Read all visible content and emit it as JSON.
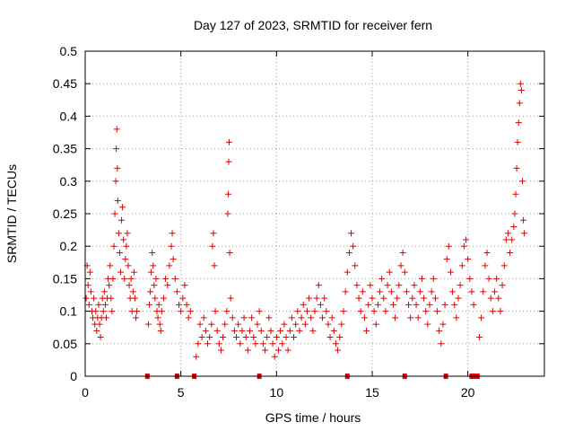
{
  "chart_data": {
    "type": "scatter",
    "title": "Day 127 of 2023, SRMTID for receiver fern",
    "xlabel": "GPS time / hours",
    "ylabel": "SRMTID / TECUs",
    "xlim": [
      0,
      24
    ],
    "ylim": [
      0,
      0.5
    ],
    "xticks": [
      0,
      5,
      10,
      15,
      20
    ],
    "xtick_labels": [
      "0",
      "5",
      "10",
      "15",
      "20"
    ],
    "yticks": [
      0,
      0.05,
      0.1,
      0.15,
      0.2,
      0.25,
      0.3,
      0.35,
      0.4,
      0.45,
      0.5
    ],
    "ytick_labels": [
      "0",
      "0.05",
      "0.1",
      "0.15",
      "0.2",
      "0.25",
      "0.3",
      "0.35",
      "0.4",
      "0.45",
      "0.5"
    ],
    "grid": true,
    "marker": "+",
    "series": [
      {
        "name": "SRMTID",
        "color": "#e00000",
        "points": [
          [
            0.05,
            0.12
          ],
          [
            0.1,
            0.17
          ],
          [
            0.15,
            0.14
          ],
          [
            0.2,
            0.11
          ],
          [
            0.25,
            0.16
          ],
          [
            0.3,
            0.13
          ],
          [
            0.35,
            0.1
          ],
          [
            0.4,
            0.09
          ],
          [
            0.45,
            0.12
          ],
          [
            0.5,
            0.08
          ],
          [
            0.55,
            0.1
          ],
          [
            0.6,
            0.07
          ],
          [
            0.65,
            0.09
          ],
          [
            0.7,
            0.11
          ],
          [
            0.75,
            0.08
          ],
          [
            0.8,
            0.06
          ],
          [
            0.85,
            0.09
          ],
          [
            0.9,
            0.12
          ],
          [
            0.95,
            0.1
          ],
          [
            1.0,
            0.13
          ],
          [
            1.05,
            0.11
          ],
          [
            1.1,
            0.09
          ],
          [
            1.15,
            0.12
          ],
          [
            1.2,
            0.15
          ],
          [
            1.25,
            0.14
          ],
          [
            1.3,
            0.17
          ],
          [
            1.35,
            0.12
          ],
          [
            1.4,
            0.1
          ],
          [
            1.45,
            0.15
          ],
          [
            1.5,
            0.2
          ],
          [
            1.55,
            0.25
          ],
          [
            1.6,
            0.3
          ],
          [
            1.62,
            0.35
          ],
          [
            1.65,
            0.38
          ],
          [
            1.68,
            0.32
          ],
          [
            1.7,
            0.27
          ],
          [
            1.75,
            0.22
          ],
          [
            1.8,
            0.19
          ],
          [
            1.85,
            0.16
          ],
          [
            1.9,
            0.24
          ],
          [
            1.95,
            0.26
          ],
          [
            2.0,
            0.21
          ],
          [
            2.05,
            0.15
          ],
          [
            2.1,
            0.18
          ],
          [
            2.15,
            0.2
          ],
          [
            2.2,
            0.22
          ],
          [
            2.25,
            0.17
          ],
          [
            2.3,
            0.14
          ],
          [
            2.35,
            0.12
          ],
          [
            2.4,
            0.15
          ],
          [
            2.45,
            0.1
          ],
          [
            2.5,
            0.13
          ],
          [
            2.55,
            0.16
          ],
          [
            2.6,
            0.12
          ],
          [
            2.65,
            0.09
          ],
          [
            2.7,
            0.1
          ],
          [
            3.3,
            0.08
          ],
          [
            3.35,
            0.11
          ],
          [
            3.4,
            0.13
          ],
          [
            3.45,
            0.16
          ],
          [
            3.5,
            0.19
          ],
          [
            3.55,
            0.17
          ],
          [
            3.6,
            0.14
          ],
          [
            3.65,
            0.12
          ],
          [
            3.7,
            0.15
          ],
          [
            3.75,
            0.1
          ],
          [
            3.8,
            0.09
          ],
          [
            3.85,
            0.11
          ],
          [
            3.9,
            0.08
          ],
          [
            3.95,
            0.07
          ],
          [
            4.0,
            0.1
          ],
          [
            4.1,
            0.12
          ],
          [
            4.2,
            0.15
          ],
          [
            4.3,
            0.14
          ],
          [
            4.4,
            0.17
          ],
          [
            4.5,
            0.2
          ],
          [
            4.55,
            0.22
          ],
          [
            4.6,
            0.18
          ],
          [
            4.7,
            0.15
          ],
          [
            4.8,
            0.13
          ],
          [
            4.9,
            0.11
          ],
          [
            5.0,
            0.1
          ],
          [
            5.1,
            0.12
          ],
          [
            5.2,
            0.14
          ],
          [
            5.3,
            0.11
          ],
          [
            5.4,
            0.09
          ],
          [
            5.5,
            0.1
          ],
          [
            5.8,
            0.03
          ],
          [
            5.9,
            0.05
          ],
          [
            6.0,
            0.08
          ],
          [
            6.1,
            0.06
          ],
          [
            6.2,
            0.09
          ],
          [
            6.3,
            0.07
          ],
          [
            6.4,
            0.05
          ],
          [
            6.5,
            0.06
          ],
          [
            6.6,
            0.08
          ],
          [
            6.65,
            0.2
          ],
          [
            6.7,
            0.22
          ],
          [
            6.75,
            0.17
          ],
          [
            6.8,
            0.1
          ],
          [
            6.9,
            0.07
          ],
          [
            7.0,
            0.05
          ],
          [
            7.1,
            0.04
          ],
          [
            7.2,
            0.06
          ],
          [
            7.3,
            0.08
          ],
          [
            7.4,
            0.1
          ],
          [
            7.45,
            0.25
          ],
          [
            7.48,
            0.28
          ],
          [
            7.5,
            0.33
          ],
          [
            7.52,
            0.36
          ],
          [
            7.55,
            0.19
          ],
          [
            7.6,
            0.12
          ],
          [
            7.7,
            0.09
          ],
          [
            7.8,
            0.07
          ],
          [
            7.9,
            0.06
          ],
          [
            8.0,
            0.08
          ],
          [
            8.1,
            0.05
          ],
          [
            8.2,
            0.07
          ],
          [
            8.3,
            0.09
          ],
          [
            8.4,
            0.06
          ],
          [
            8.5,
            0.04
          ],
          [
            8.6,
            0.07
          ],
          [
            8.7,
            0.09
          ],
          [
            8.8,
            0.06
          ],
          [
            8.9,
            0.05
          ],
          [
            9.0,
            0.08
          ],
          [
            9.1,
            0.1
          ],
          [
            9.2,
            0.07
          ],
          [
            9.3,
            0.05
          ],
          [
            9.4,
            0.04
          ],
          [
            9.5,
            0.06
          ],
          [
            9.6,
            0.09
          ],
          [
            9.7,
            0.07
          ],
          [
            9.8,
            0.05
          ],
          [
            9.9,
            0.03
          ],
          [
            10.0,
            0.06
          ],
          [
            10.1,
            0.04
          ],
          [
            10.2,
            0.07
          ],
          [
            10.3,
            0.05
          ],
          [
            10.4,
            0.08
          ],
          [
            10.5,
            0.06
          ],
          [
            10.6,
            0.04
          ],
          [
            10.7,
            0.07
          ],
          [
            10.8,
            0.09
          ],
          [
            10.9,
            0.06
          ],
          [
            11.0,
            0.08
          ],
          [
            11.1,
            0.1
          ],
          [
            11.2,
            0.07
          ],
          [
            11.3,
            0.09
          ],
          [
            11.4,
            0.11
          ],
          [
            11.5,
            0.08
          ],
          [
            11.6,
            0.1
          ],
          [
            11.7,
            0.12
          ],
          [
            11.8,
            0.09
          ],
          [
            11.9,
            0.07
          ],
          [
            12.0,
            0.1
          ],
          [
            12.1,
            0.12
          ],
          [
            12.2,
            0.14
          ],
          [
            12.3,
            0.11
          ],
          [
            12.4,
            0.09
          ],
          [
            12.5,
            0.12
          ],
          [
            12.6,
            0.1
          ],
          [
            12.7,
            0.08
          ],
          [
            12.8,
            0.06
          ],
          [
            12.9,
            0.09
          ],
          [
            13.0,
            0.07
          ],
          [
            13.1,
            0.05
          ],
          [
            13.2,
            0.04
          ],
          [
            13.3,
            0.06
          ],
          [
            13.4,
            0.08
          ],
          [
            13.5,
            0.1
          ],
          [
            13.6,
            0.13
          ],
          [
            13.7,
            0.16
          ],
          [
            13.8,
            0.19
          ],
          [
            13.9,
            0.22
          ],
          [
            14.0,
            0.2
          ],
          [
            14.1,
            0.17
          ],
          [
            14.2,
            0.14
          ],
          [
            14.3,
            0.12
          ],
          [
            14.4,
            0.1
          ],
          [
            14.5,
            0.13
          ],
          [
            14.6,
            0.09
          ],
          [
            14.7,
            0.07
          ],
          [
            14.8,
            0.11
          ],
          [
            14.9,
            0.14
          ],
          [
            15.0,
            0.12
          ],
          [
            15.1,
            0.1
          ],
          [
            15.2,
            0.08
          ],
          [
            15.3,
            0.11
          ],
          [
            15.4,
            0.13
          ],
          [
            15.5,
            0.15
          ],
          [
            15.6,
            0.12
          ],
          [
            15.7,
            0.1
          ],
          [
            15.8,
            0.14
          ],
          [
            15.9,
            0.16
          ],
          [
            16.0,
            0.13
          ],
          [
            16.1,
            0.11
          ],
          [
            16.2,
            0.09
          ],
          [
            16.3,
            0.12
          ],
          [
            16.4,
            0.14
          ],
          [
            16.5,
            0.17
          ],
          [
            16.6,
            0.19
          ],
          [
            16.7,
            0.16
          ],
          [
            16.8,
            0.13
          ],
          [
            16.9,
            0.11
          ],
          [
            17.0,
            0.09
          ],
          [
            17.1,
            0.12
          ],
          [
            17.2,
            0.14
          ],
          [
            17.3,
            0.11
          ],
          [
            17.4,
            0.09
          ],
          [
            17.5,
            0.13
          ],
          [
            17.6,
            0.15
          ],
          [
            17.7,
            0.12
          ],
          [
            17.8,
            0.1
          ],
          [
            17.9,
            0.08
          ],
          [
            18.0,
            0.11
          ],
          [
            18.1,
            0.13
          ],
          [
            18.2,
            0.15
          ],
          [
            18.3,
            0.12
          ],
          [
            18.4,
            0.1
          ],
          [
            18.5,
            0.07
          ],
          [
            18.6,
            0.05
          ],
          [
            18.7,
            0.08
          ],
          [
            18.8,
            0.11
          ],
          [
            18.9,
            0.18
          ],
          [
            19.0,
            0.2
          ],
          [
            19.1,
            0.16
          ],
          [
            19.2,
            0.13
          ],
          [
            19.3,
            0.11
          ],
          [
            19.4,
            0.09
          ],
          [
            19.5,
            0.12
          ],
          [
            19.6,
            0.14
          ],
          [
            19.7,
            0.17
          ],
          [
            19.8,
            0.2
          ],
          [
            19.9,
            0.21
          ],
          [
            20.0,
            0.18
          ],
          [
            20.1,
            0.15
          ],
          [
            20.2,
            0.13
          ],
          [
            20.3,
            0.11
          ],
          [
            20.6,
            0.06
          ],
          [
            20.7,
            0.09
          ],
          [
            20.8,
            0.13
          ],
          [
            20.9,
            0.17
          ],
          [
            21.0,
            0.19
          ],
          [
            21.1,
            0.15
          ],
          [
            21.2,
            0.12
          ],
          [
            21.3,
            0.1
          ],
          [
            21.4,
            0.13
          ],
          [
            21.5,
            0.15
          ],
          [
            21.6,
            0.12
          ],
          [
            21.7,
            0.1
          ],
          [
            21.8,
            0.14
          ],
          [
            21.9,
            0.17
          ],
          [
            22.0,
            0.21
          ],
          [
            22.1,
            0.22
          ],
          [
            22.2,
            0.19
          ],
          [
            22.3,
            0.21
          ],
          [
            22.4,
            0.23
          ],
          [
            22.45,
            0.25
          ],
          [
            22.5,
            0.28
          ],
          [
            22.55,
            0.32
          ],
          [
            22.6,
            0.36
          ],
          [
            22.65,
            0.39
          ],
          [
            22.7,
            0.42
          ],
          [
            22.75,
            0.45
          ],
          [
            22.8,
            0.44
          ],
          [
            22.85,
            0.3
          ],
          [
            22.9,
            0.24
          ],
          [
            22.95,
            0.22
          ]
        ]
      }
    ],
    "baseline_markers": [
      3.25,
      4.8,
      5.7,
      9.1,
      13.7,
      16.7,
      18.85,
      20.2,
      20.4,
      20.5
    ]
  }
}
